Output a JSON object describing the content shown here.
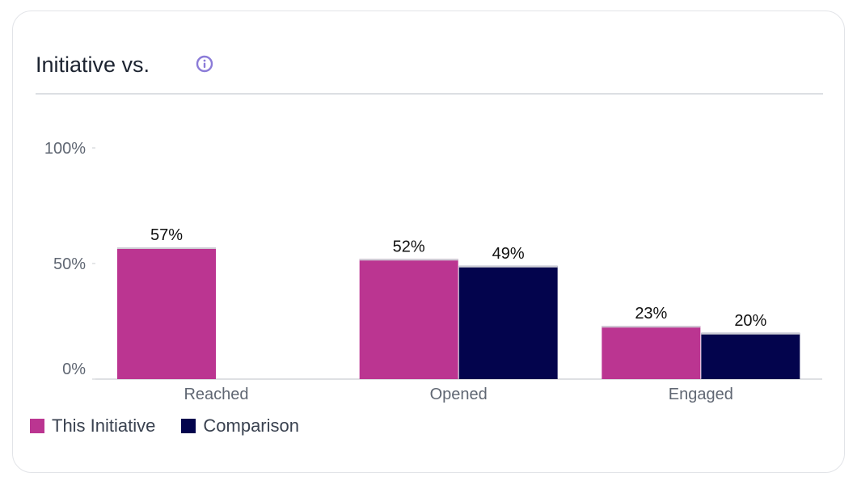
{
  "card": {
    "title": "Initiative vs."
  },
  "icons": {
    "info": "info-icon"
  },
  "colors": {
    "this_initiative": "#bb3591",
    "comparison": "#03044d",
    "bar_cap": "#cfcfd6",
    "info_icon": "#8b7bd8"
  },
  "legend": {
    "items": [
      {
        "label": "This Initiative"
      },
      {
        "label": "Comparison"
      }
    ]
  },
  "chart_data": {
    "type": "bar",
    "title": "Initiative vs.",
    "xlabel": "",
    "ylabel": "",
    "ylim": [
      0,
      100
    ],
    "yticks": [
      {
        "value": 0,
        "label": "0%"
      },
      {
        "value": 50,
        "label": "50%"
      },
      {
        "value": 100,
        "label": "100%"
      }
    ],
    "categories": [
      "Reached",
      "Opened",
      "Engaged"
    ],
    "series": [
      {
        "name": "This Initiative",
        "values": [
          57,
          52,
          23
        ],
        "labels": [
          "57%",
          "52%",
          "23%"
        ]
      },
      {
        "name": "Comparison",
        "values": [
          null,
          49,
          20
        ],
        "labels": [
          "",
          "49%",
          "20%"
        ]
      }
    ],
    "legend_position": "bottom-left",
    "grid": false
  }
}
